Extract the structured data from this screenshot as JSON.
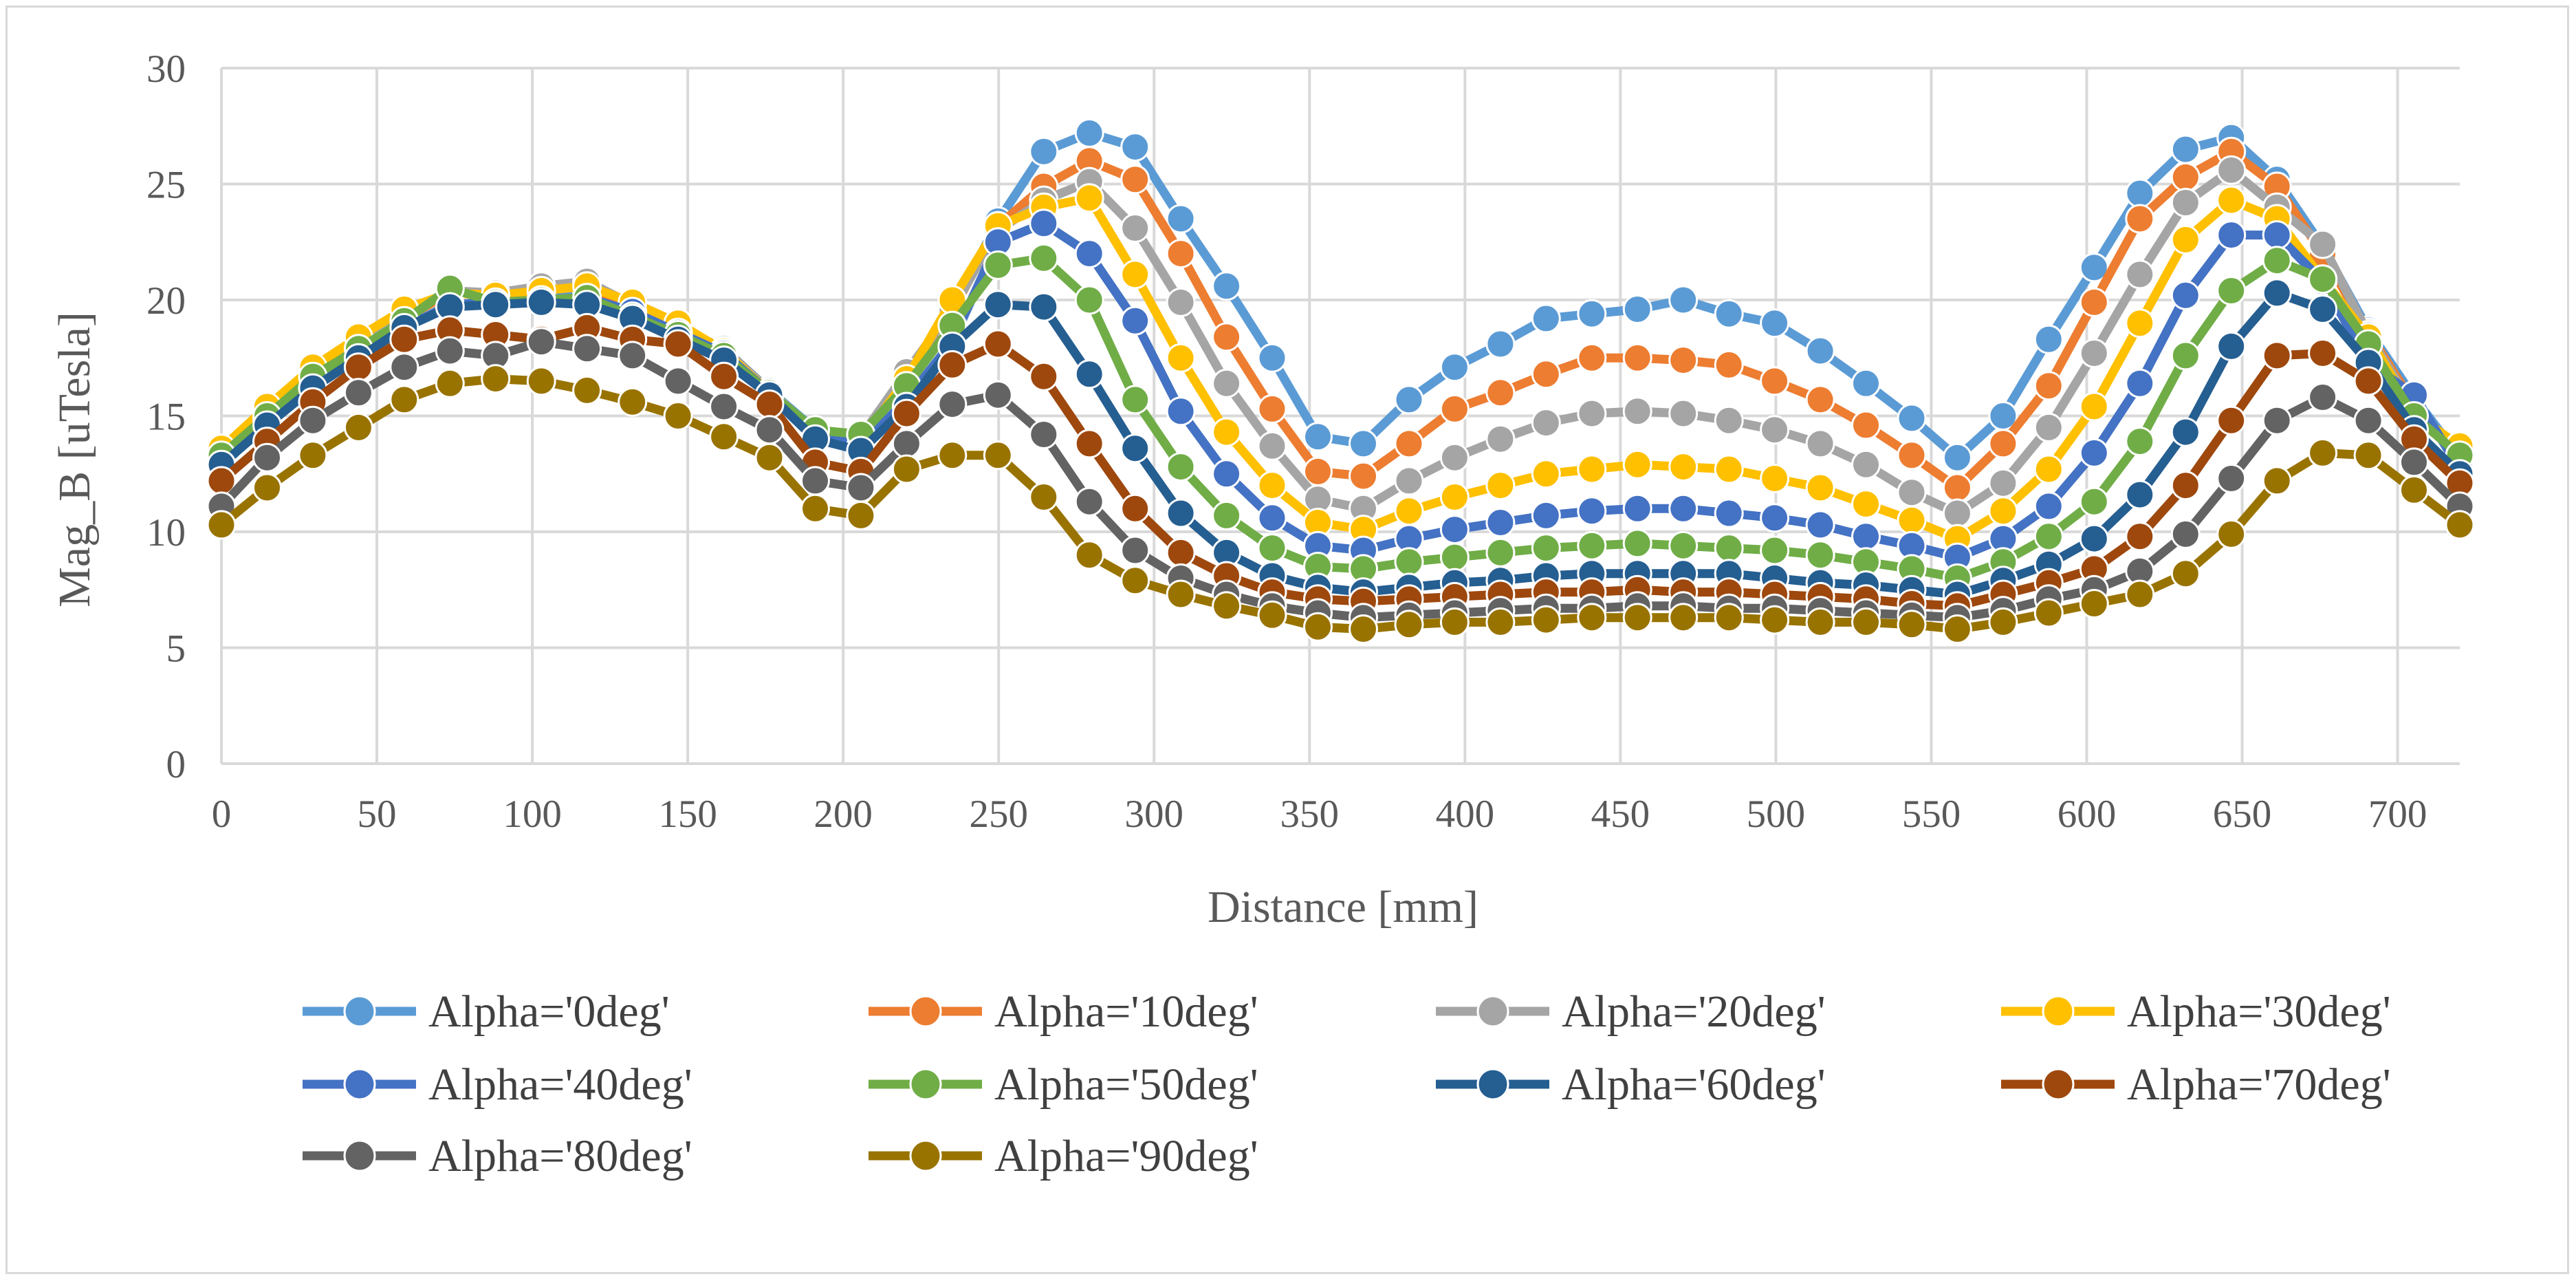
{
  "chart_data": {
    "type": "line",
    "title": "",
    "xlabel": "Distance [mm]",
    "ylabel": "Mag_B [uTesla]",
    "xlim": [
      0,
      720
    ],
    "ylim": [
      0,
      30
    ],
    "xticks": [
      0,
      50,
      100,
      150,
      200,
      250,
      300,
      350,
      400,
      450,
      500,
      550,
      600,
      650,
      700
    ],
    "yticks": [
      0,
      5,
      10,
      15,
      20,
      25,
      30
    ],
    "grid": true,
    "legend_position": "bottom",
    "x": [
      0,
      14.7,
      29.4,
      44.1,
      58.8,
      73.5,
      88.2,
      102.9,
      117.6,
      132.2,
      146.9,
      161.6,
      176.3,
      191,
      205.7,
      220.4,
      235.1,
      249.8,
      264.5,
      279.2,
      293.9,
      308.6,
      323.3,
      338,
      352.7,
      367.3,
      382,
      396.7,
      411.4,
      426.1,
      440.8,
      455.5,
      470.2,
      484.9,
      499.6,
      514.3,
      529,
      543.7,
      558.4,
      573.1,
      587.8,
      602.4,
      617.1,
      631.8,
      646.5,
      661.2,
      675.9,
      690.6,
      705.3,
      720
    ],
    "series": [
      {
        "name": "Alpha='0deg'",
        "color": "#5B9BD5",
        "values": [
          13.4,
          15.3,
          16.8,
          18.0,
          19.3,
          20.4,
          20.1,
          20.2,
          20.3,
          19.6,
          18.8,
          17.9,
          16.1,
          14.4,
          14.1,
          16.8,
          19.6,
          23.4,
          26.4,
          27.2,
          26.6,
          23.5,
          20.6,
          17.5,
          14.1,
          13.8,
          15.7,
          17.1,
          18.1,
          19.2,
          19.4,
          19.6,
          20.0,
          19.4,
          19.0,
          17.8,
          16.4,
          14.9,
          13.2,
          15.0,
          18.3,
          21.4,
          24.6,
          26.5,
          27.0,
          25.2,
          22.3,
          18.7,
          15.8,
          13.2
        ]
      },
      {
        "name": "Alpha='10deg'",
        "color": "#ED7D31",
        "values": [
          13.3,
          15.2,
          16.7,
          17.9,
          19.2,
          20.3,
          20.2,
          20.4,
          20.6,
          19.7,
          18.7,
          17.8,
          16.0,
          14.3,
          14.0,
          16.7,
          19.5,
          23.2,
          24.9,
          26.0,
          25.2,
          22.0,
          18.4,
          15.3,
          12.6,
          12.4,
          13.8,
          15.3,
          16.0,
          16.8,
          17.5,
          17.5,
          17.4,
          17.2,
          16.5,
          15.7,
          14.6,
          13.3,
          11.9,
          13.8,
          16.3,
          19.9,
          23.5,
          25.3,
          26.4,
          24.9,
          22.0,
          18.6,
          15.5,
          13.1
        ]
      },
      {
        "name": "Alpha='20deg'",
        "color": "#A5A5A5",
        "values": [
          13.2,
          15.1,
          16.9,
          18.2,
          19.4,
          20.4,
          20.3,
          20.6,
          20.8,
          19.8,
          18.8,
          17.9,
          16.1,
          14.3,
          14.1,
          16.9,
          19.6,
          23.0,
          24.3,
          25.1,
          23.1,
          19.9,
          16.4,
          13.7,
          11.4,
          11.0,
          12.2,
          13.2,
          14.0,
          14.7,
          15.1,
          15.2,
          15.1,
          14.8,
          14.4,
          13.8,
          12.9,
          11.7,
          10.8,
          12.1,
          14.5,
          17.7,
          21.1,
          24.2,
          25.6,
          24.0,
          22.4,
          18.5,
          15.3,
          13.1
        ]
      },
      {
        "name": "Alpha='30deg'",
        "color": "#FFC000",
        "values": [
          13.6,
          15.4,
          17.1,
          18.4,
          19.6,
          20.3,
          20.2,
          20.4,
          20.6,
          19.9,
          19.0,
          17.8,
          16.0,
          14.2,
          13.9,
          16.6,
          20.0,
          23.2,
          24.0,
          24.4,
          21.1,
          17.5,
          14.3,
          12.0,
          10.4,
          10.1,
          10.9,
          11.5,
          12.0,
          12.5,
          12.7,
          12.9,
          12.8,
          12.7,
          12.3,
          11.9,
          11.2,
          10.5,
          9.7,
          10.9,
          12.7,
          15.4,
          19.0,
          22.6,
          24.3,
          23.5,
          20.9,
          18.4,
          15.1,
          13.7
        ]
      },
      {
        "name": "Alpha='40deg'",
        "color": "#4472C4",
        "values": [
          12.8,
          14.8,
          16.2,
          17.5,
          18.8,
          19.8,
          19.9,
          20.0,
          20.1,
          19.5,
          18.6,
          17.7,
          16.0,
          14.3,
          13.7,
          15.7,
          18.2,
          22.5,
          23.3,
          22.0,
          19.1,
          15.2,
          12.5,
          10.6,
          9.4,
          9.2,
          9.7,
          10.1,
          10.4,
          10.7,
          10.9,
          11.0,
          11.0,
          10.8,
          10.6,
          10.3,
          9.8,
          9.4,
          8.9,
          9.7,
          11.1,
          13.4,
          16.4,
          20.2,
          22.8,
          22.8,
          20.8,
          17.3,
          15.9,
          12.7
        ]
      },
      {
        "name": "Alpha='50deg'",
        "color": "#70AD47",
        "values": [
          13.3,
          15.0,
          16.7,
          17.9,
          19.1,
          20.5,
          19.9,
          20.0,
          20.1,
          19.3,
          18.5,
          17.6,
          16.0,
          14.4,
          14.2,
          16.3,
          18.9,
          21.5,
          21.8,
          20.0,
          15.7,
          12.8,
          10.7,
          9.3,
          8.5,
          8.4,
          8.7,
          8.9,
          9.1,
          9.3,
          9.4,
          9.5,
          9.4,
          9.3,
          9.2,
          9.0,
          8.7,
          8.4,
          8.0,
          8.7,
          9.8,
          11.3,
          13.9,
          17.6,
          20.4,
          21.7,
          20.9,
          18.1,
          15.0,
          13.3
        ]
      },
      {
        "name": "Alpha='60deg'",
        "color": "#255E91",
        "values": [
          12.9,
          14.6,
          16.2,
          17.5,
          18.8,
          19.7,
          19.8,
          19.9,
          19.8,
          19.2,
          18.3,
          17.4,
          15.9,
          14.0,
          13.5,
          15.4,
          18.0,
          19.8,
          19.7,
          16.8,
          13.6,
          10.8,
          9.1,
          8.1,
          7.6,
          7.4,
          7.6,
          7.8,
          7.9,
          8.1,
          8.2,
          8.2,
          8.2,
          8.2,
          8.0,
          7.8,
          7.7,
          7.5,
          7.3,
          7.9,
          8.6,
          9.7,
          11.6,
          14.3,
          18.0,
          20.3,
          19.6,
          17.3,
          14.4,
          12.5
        ]
      },
      {
        "name": "Alpha='70deg'",
        "color": "#9E480E",
        "values": [
          12.2,
          13.9,
          15.6,
          17.1,
          18.3,
          18.7,
          18.5,
          18.3,
          18.8,
          18.3,
          18.1,
          16.7,
          15.5,
          13.0,
          12.6,
          15.1,
          17.2,
          18.1,
          16.7,
          13.8,
          11.0,
          9.1,
          8.1,
          7.4,
          7.1,
          7.0,
          7.1,
          7.2,
          7.3,
          7.4,
          7.4,
          7.5,
          7.4,
          7.4,
          7.3,
          7.2,
          7.1,
          6.9,
          6.8,
          7.3,
          7.8,
          8.4,
          9.8,
          12.0,
          14.8,
          17.6,
          17.7,
          16.5,
          14.0,
          12.1
        ]
      },
      {
        "name": "Alpha='80deg'",
        "color": "#636363",
        "values": [
          11.1,
          13.2,
          14.8,
          16.0,
          17.1,
          17.8,
          17.6,
          18.2,
          17.9,
          17.6,
          16.5,
          15.4,
          14.4,
          12.2,
          11.9,
          13.8,
          15.5,
          15.9,
          14.2,
          11.3,
          9.2,
          8.0,
          7.3,
          6.8,
          6.5,
          6.3,
          6.4,
          6.5,
          6.6,
          6.7,
          6.7,
          6.8,
          6.8,
          6.7,
          6.7,
          6.6,
          6.5,
          6.4,
          6.3,
          6.6,
          7.1,
          7.5,
          8.3,
          9.9,
          12.3,
          14.8,
          15.8,
          14.8,
          13.0,
          11.1
        ]
      },
      {
        "name": "Alpha='90deg'",
        "color": "#997300",
        "values": [
          10.3,
          11.9,
          13.3,
          14.5,
          15.7,
          16.4,
          16.6,
          16.5,
          16.1,
          15.6,
          15.0,
          14.1,
          13.2,
          11.0,
          10.7,
          12.7,
          13.3,
          13.3,
          11.5,
          9.0,
          7.9,
          7.3,
          6.8,
          6.4,
          5.9,
          5.8,
          6.0,
          6.1,
          6.1,
          6.2,
          6.3,
          6.3,
          6.3,
          6.3,
          6.2,
          6.1,
          6.1,
          6.0,
          5.8,
          6.1,
          6.5,
          6.9,
          7.3,
          8.2,
          9.9,
          12.2,
          13.4,
          13.3,
          11.8,
          10.3
        ]
      }
    ]
  }
}
